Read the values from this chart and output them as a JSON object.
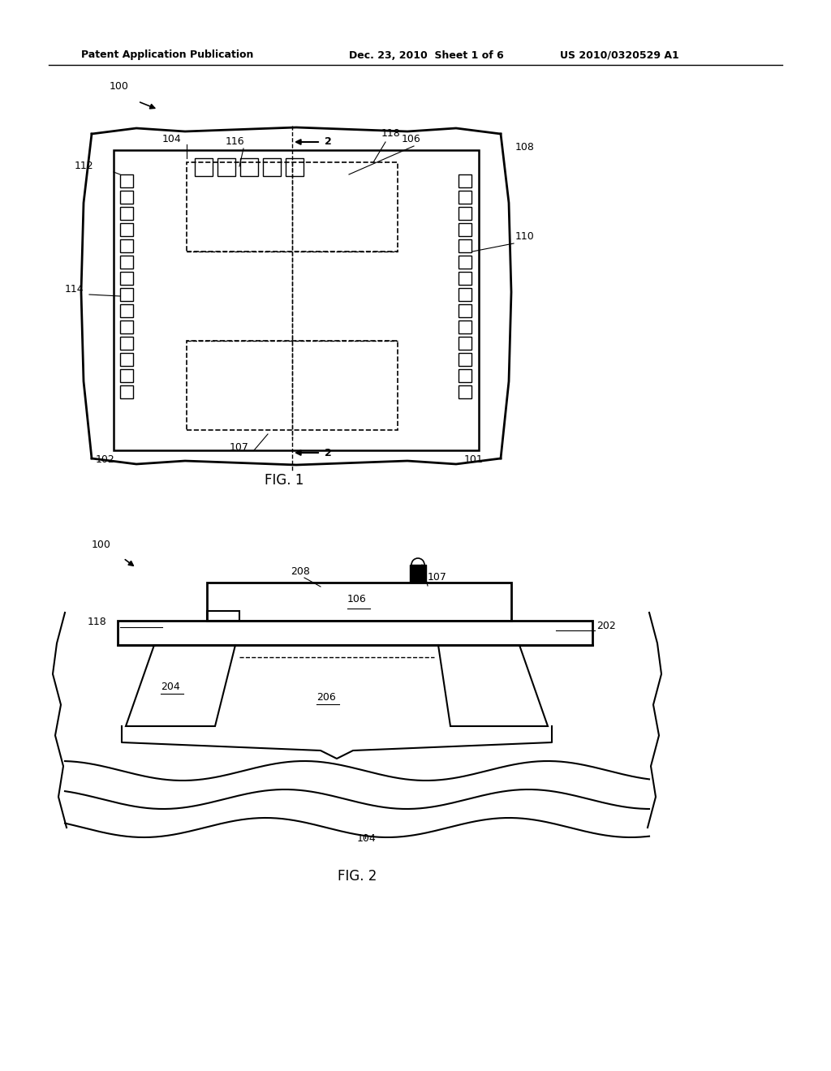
{
  "bg_color": "#ffffff",
  "line_color": "#000000",
  "header_left": "Patent Application Publication",
  "header_mid": "Dec. 23, 2010  Sheet 1 of 6",
  "header_right": "US 2010/0320529 A1",
  "fig1_label": "FIG. 1",
  "fig2_label": "FIG. 2",
  "label_100_1": "100",
  "label_100_2": "100",
  "label_101": "101",
  "label_102": "102",
  "label_104_1": "104",
  "label_104_2": "104",
  "label_106_1": "106",
  "label_106_2": "106",
  "label_107_1": "107",
  "label_107_2": "107",
  "label_108": "108",
  "label_110": "110",
  "label_112": "112",
  "label_114": "114",
  "label_116": "116",
  "label_118_1": "118",
  "label_118_2": "118",
  "label_2_top": "2",
  "label_2_bot": "2",
  "label_202": "202",
  "label_204": "204",
  "label_206": "206",
  "label_208": "208"
}
